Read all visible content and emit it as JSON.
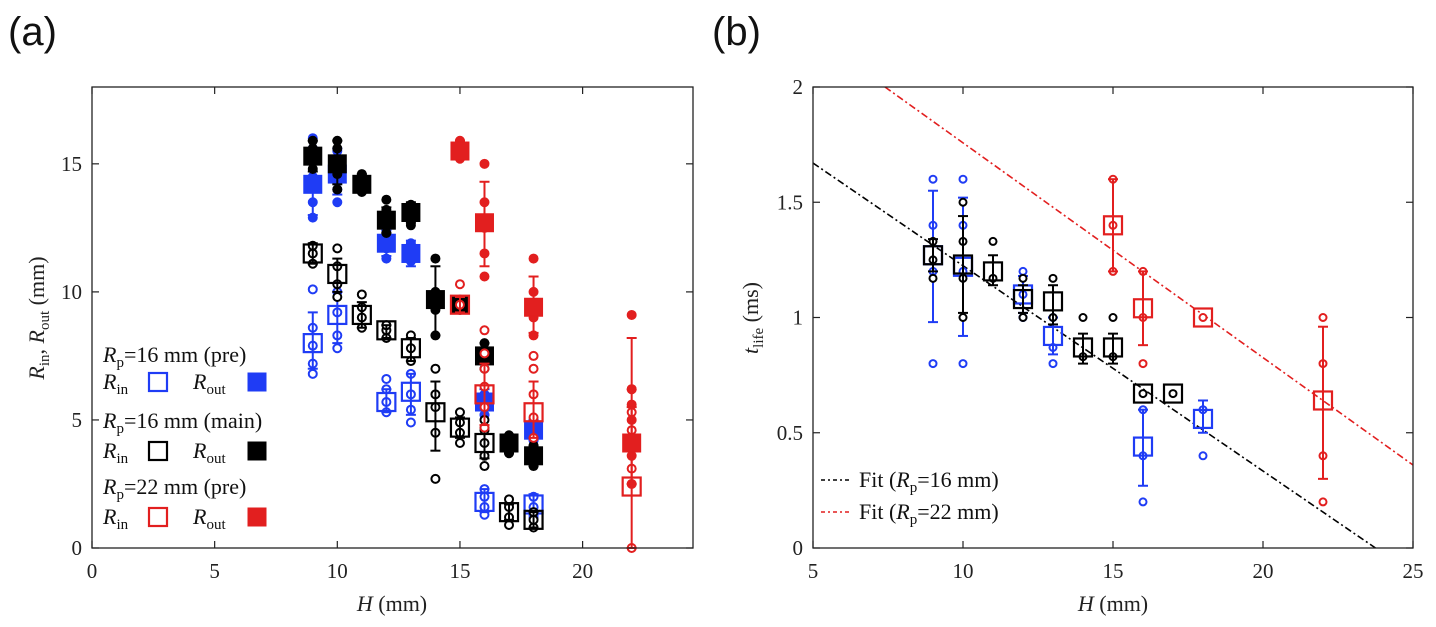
{
  "colors": {
    "blue": "#1f3cf5",
    "black": "#000000",
    "red": "#e21f1f"
  },
  "chart_data": [
    {
      "panel_label": "(a)",
      "type": "scatter",
      "xlabel_italic": "H",
      "xlabel_unit": " (mm)",
      "ylabel": {
        "r1": "R",
        "s1": "in",
        "sep": ",  ",
        "r2": "R",
        "s2": "out",
        "unit": " (mm)"
      },
      "xlim": [
        0,
        24.5
      ],
      "ylim": [
        0,
        18
      ],
      "xticks": [
        0,
        5,
        10,
        15,
        20
      ],
      "yticks": [
        0,
        5,
        10,
        15
      ],
      "legend": {
        "position": "left-center",
        "groups": [
          {
            "var": "R",
            "sub": "p",
            "eq": "=16 mm (pre)",
            "in_label_var": "R",
            "in_label_sub": "in",
            "out_label_var": "R",
            "out_label_sub": "out",
            "color": "blue"
          },
          {
            "var": "R",
            "sub": "p",
            "eq": "=16 mm (main)",
            "in_label_var": "R",
            "in_label_sub": "in",
            "out_label_var": "R",
            "out_label_sub": "out",
            "color": "black"
          },
          {
            "var": "R",
            "sub": "p",
            "eq": "=22 mm (pre)",
            "in_label_var": "R",
            "in_label_sub": "in",
            "out_label_var": "R",
            "out_label_sub": "out",
            "color": "red"
          }
        ]
      },
      "series": [
        {
          "name": "Rp=16 mm (pre) Rout",
          "color": "blue",
          "marker": "filled-square",
          "points": [
            {
              "x": 9,
              "y": 14.2,
              "lo": 13.0,
              "hi": 15.6,
              "raw": [
                12.9,
                13.5,
                14.1,
                14.5,
                15.2,
                15.6,
                16.0
              ]
            },
            {
              "x": 10,
              "y": 14.6,
              "lo": 13.8,
              "hi": 15.6,
              "raw": [
                13.5,
                14.0,
                14.5,
                15.0,
                15.5
              ]
            },
            {
              "x": 12,
              "y": 11.9,
              "lo": 11.4,
              "hi": 12.4,
              "raw": [
                11.3,
                11.7,
                12.0,
                12.4
              ]
            },
            {
              "x": 13,
              "y": 11.5,
              "lo": 11.0,
              "hi": 12.0,
              "raw": [
                11.2,
                11.5,
                11.9
              ]
            },
            {
              "x": 16,
              "y": 5.7,
              "lo": 5.2,
              "hi": 6.2,
              "raw": [
                5.2,
                5.6,
                6.0
              ]
            },
            {
              "x": 18,
              "y": 4.6,
              "lo": 4.2,
              "hi": 5.0,
              "raw": [
                4.2,
                4.6,
                5.0
              ]
            }
          ]
        },
        {
          "name": "Rp=16 mm (pre) Rin",
          "color": "blue",
          "marker": "open-square",
          "points": [
            {
              "x": 9,
              "y": 8.0,
              "lo": 7.0,
              "hi": 9.2,
              "raw": [
                6.8,
                7.2,
                7.9,
                8.6,
                10.1
              ]
            },
            {
              "x": 10,
              "y": 9.1,
              "lo": 8.0,
              "hi": 10.0,
              "raw": [
                7.8,
                8.3,
                9.2,
                10.0
              ]
            },
            {
              "x": 12,
              "y": 5.7,
              "lo": 5.3,
              "hi": 6.2,
              "raw": [
                5.3,
                5.7,
                6.2,
                6.6
              ]
            },
            {
              "x": 13,
              "y": 6.1,
              "lo": 5.2,
              "hi": 6.8,
              "raw": [
                4.9,
                5.4,
                6.0,
                6.8
              ]
            },
            {
              "x": 16,
              "y": 1.8,
              "lo": 1.4,
              "hi": 2.3,
              "raw": [
                1.3,
                1.6,
                2.0,
                2.3
              ]
            },
            {
              "x": 18,
              "y": 1.7,
              "lo": 1.3,
              "hi": 2.1,
              "raw": [
                1.2,
                1.6,
                2.0
              ]
            }
          ]
        },
        {
          "name": "Rp=16 mm (main) Rout",
          "color": "black",
          "marker": "filled-square",
          "points": [
            {
              "x": 9,
              "y": 15.3,
              "lo": 14.7,
              "hi": 15.9,
              "raw": [
                14.8,
                15.2,
                15.6,
                15.9
              ]
            },
            {
              "x": 10,
              "y": 15.0,
              "lo": 14.2,
              "hi": 15.9,
              "raw": [
                14.0,
                14.6,
                15.1,
                15.6,
                15.9
              ]
            },
            {
              "x": 11,
              "y": 14.2,
              "lo": 13.9,
              "hi": 14.6,
              "raw": [
                13.9,
                14.2,
                14.6
              ]
            },
            {
              "x": 12,
              "y": 12.8,
              "lo": 12.3,
              "hi": 13.3,
              "raw": [
                12.3,
                12.8,
                13.2,
                13.6
              ]
            },
            {
              "x": 13,
              "y": 13.1,
              "lo": 12.7,
              "hi": 13.5,
              "raw": [
                12.6,
                13.0,
                13.4
              ]
            },
            {
              "x": 14,
              "y": 9.7,
              "lo": 8.3,
              "hi": 11.0,
              "raw": [
                8.3,
                9.3,
                10.0,
                11.3
              ]
            },
            {
              "x": 15,
              "y": 9.5,
              "lo": 9.3,
              "hi": 9.7,
              "raw": [
                9.3,
                9.7
              ]
            },
            {
              "x": 16,
              "y": 7.5,
              "lo": 7.0,
              "hi": 8.0,
              "raw": [
                7.0,
                7.5,
                8.0
              ]
            },
            {
              "x": 17,
              "y": 4.1,
              "lo": 3.7,
              "hi": 4.4,
              "raw": [
                3.7,
                4.1,
                4.4
              ]
            },
            {
              "x": 18,
              "y": 3.6,
              "lo": 3.2,
              "hi": 4.0,
              "raw": [
                3.2,
                3.6,
                4.0
              ]
            }
          ]
        },
        {
          "name": "Rp=16 mm (main) Rin",
          "color": "black",
          "marker": "open-square",
          "points": [
            {
              "x": 9,
              "y": 11.5,
              "lo": 11.1,
              "hi": 11.9,
              "raw": [
                11.1,
                11.5,
                11.8
              ]
            },
            {
              "x": 10,
              "y": 10.7,
              "lo": 10.0,
              "hi": 11.3,
              "raw": [
                9.8,
                10.3,
                11.0,
                11.7
              ]
            },
            {
              "x": 11,
              "y": 9.1,
              "lo": 8.6,
              "hi": 9.6,
              "raw": [
                8.6,
                9.0,
                9.4,
                9.9
              ]
            },
            {
              "x": 12,
              "y": 8.5,
              "lo": 8.2,
              "hi": 8.7,
              "raw": [
                8.2,
                8.5,
                8.7
              ]
            },
            {
              "x": 13,
              "y": 7.8,
              "lo": 7.3,
              "hi": 8.2,
              "raw": [
                7.3,
                7.8,
                8.3
              ]
            },
            {
              "x": 14,
              "y": 5.3,
              "lo": 3.8,
              "hi": 6.5,
              "raw": [
                2.7,
                4.5,
                5.5,
                6.0,
                7.0
              ]
            },
            {
              "x": 15,
              "y": 4.7,
              "lo": 4.3,
              "hi": 5.1,
              "raw": [
                4.1,
                4.5,
                4.9,
                5.3
              ]
            },
            {
              "x": 16,
              "y": 4.1,
              "lo": 3.5,
              "hi": 4.7,
              "raw": [
                3.2,
                3.6,
                4.1,
                4.6,
                5.0
              ]
            },
            {
              "x": 17,
              "y": 1.4,
              "lo": 1.1,
              "hi": 1.7,
              "raw": [
                0.9,
                1.2,
                1.6,
                1.9
              ]
            },
            {
              "x": 18,
              "y": 1.1,
              "lo": 0.8,
              "hi": 1.4,
              "raw": [
                0.8,
                1.1,
                1.4
              ]
            }
          ]
        },
        {
          "name": "Rp=22 mm (pre) Rout",
          "color": "red",
          "marker": "filled-square",
          "points": [
            {
              "x": 15,
              "y": 15.5,
              "lo": 15.2,
              "hi": 15.9,
              "raw": [
                15.2,
                15.6,
                15.9
              ]
            },
            {
              "x": 16,
              "y": 12.7,
              "lo": 11.0,
              "hi": 14.3,
              "raw": [
                10.6,
                11.5,
                12.5,
                13.5,
                15.0
              ]
            },
            {
              "x": 18,
              "y": 9.4,
              "lo": 8.4,
              "hi": 10.6,
              "raw": [
                8.3,
                9.0,
                10.0,
                11.3
              ]
            },
            {
              "x": 22,
              "y": 4.1,
              "lo": 2.5,
              "hi": 5.5,
              "raw": [
                2.5,
                3.6,
                4.2,
                5.0,
                5.6,
                6.2,
                9.1
              ]
            }
          ]
        },
        {
          "name": "Rp=22 mm (pre) Rin",
          "color": "red",
          "marker": "open-square",
          "points": [
            {
              "x": 15,
              "y": 9.5,
              "lo": 9.2,
              "hi": 9.8,
              "raw": [
                9.5,
                10.3
              ]
            },
            {
              "x": 16,
              "y": 6.0,
              "lo": 4.8,
              "hi": 7.2,
              "raw": [
                4.7,
                5.5,
                6.3,
                7.0,
                7.6,
                8.5
              ]
            },
            {
              "x": 18,
              "y": 5.3,
              "lo": 4.3,
              "hi": 6.5,
              "raw": [
                4.3,
                5.1,
                6.0,
                7.0,
                7.5
              ]
            },
            {
              "x": 22,
              "y": 2.4,
              "lo": 0,
              "hi": 8.2,
              "raw": [
                0,
                3.1,
                4.0,
                4.6,
                5.3,
                6.2
              ]
            }
          ]
        }
      ]
    },
    {
      "panel_label": "(b)",
      "type": "scatter",
      "xlabel_italic": "H",
      "xlabel_unit": " (mm)",
      "ylabel": {
        "var": "t",
        "sub": "life",
        "unit": " (ms)"
      },
      "xlim": [
        5,
        25
      ],
      "ylim": [
        0,
        2
      ],
      "xticks": [
        5,
        10,
        15,
        20,
        25
      ],
      "yticks": [
        0,
        0.5,
        1,
        1.5,
        2
      ],
      "ytick_labels": [
        "0",
        "0.5",
        "1",
        "1.5",
        "2"
      ],
      "legend": {
        "position": "bottom-left",
        "entries": [
          {
            "pre": "Fit (",
            "var": "R",
            "sub": "p",
            "post": "=16 mm)",
            "color": "black"
          },
          {
            "pre": "Fit (",
            "var": "R",
            "sub": "p",
            "post": "=22 mm)",
            "color": "red"
          }
        ]
      },
      "fits": [
        {
          "name": "Fit (Rp=16 mm)",
          "color": "black",
          "x1": 5,
          "y1": 1.67,
          "x2": 23.75,
          "y2": 0
        },
        {
          "name": "Fit (Rp=22 mm)",
          "color": "red",
          "x1": 7.4,
          "y1": 2.0,
          "x2": 25,
          "y2": 0.36
        }
      ],
      "series": [
        {
          "name": "Rp=16 mm (pre)",
          "color": "blue",
          "points": [
            {
              "x": 9,
              "y": 1.27,
              "lo": 0.98,
              "hi": 1.55,
              "raw": [
                0.8,
                1.2,
                1.4,
                1.6
              ]
            },
            {
              "x": 10,
              "y": 1.22,
              "lo": 0.92,
              "hi": 1.52,
              "raw": [
                0.8,
                1.2,
                1.4,
                1.6
              ]
            },
            {
              "x": 12,
              "y": 1.1,
              "lo": 1.02,
              "hi": 1.18,
              "raw": [
                1.0,
                1.1,
                1.2
              ]
            },
            {
              "x": 13,
              "y": 0.92,
              "lo": 0.84,
              "hi": 1.0,
              "raw": [
                0.8,
                0.87,
                1.0
              ]
            },
            {
              "x": 16,
              "y": 0.44,
              "lo": 0.27,
              "hi": 0.6,
              "raw": [
                0.2,
                0.4,
                0.6
              ]
            },
            {
              "x": 18,
              "y": 0.56,
              "lo": 0.5,
              "hi": 0.64,
              "raw": [
                0.4,
                0.6
              ]
            }
          ]
        },
        {
          "name": "Rp=16 mm (main)",
          "color": "black",
          "points": [
            {
              "x": 9,
              "y": 1.27,
              "lo": 1.2,
              "hi": 1.34,
              "raw": [
                1.17,
                1.25,
                1.33
              ]
            },
            {
              "x": 10,
              "y": 1.23,
              "lo": 1.02,
              "hi": 1.44,
              "raw": [
                1.0,
                1.17,
                1.33,
                1.5
              ]
            },
            {
              "x": 11,
              "y": 1.2,
              "lo": 1.14,
              "hi": 1.27,
              "raw": [
                1.17,
                1.33
              ]
            },
            {
              "x": 12,
              "y": 1.08,
              "lo": 1.02,
              "hi": 1.14,
              "raw": [
                1.0,
                1.17
              ]
            },
            {
              "x": 13,
              "y": 1.07,
              "lo": 0.97,
              "hi": 1.14,
              "raw": [
                1.0,
                1.17
              ]
            },
            {
              "x": 14,
              "y": 0.87,
              "lo": 0.8,
              "hi": 0.93,
              "raw": [
                0.83,
                1.0
              ]
            },
            {
              "x": 15,
              "y": 0.87,
              "lo": 0.8,
              "hi": 0.93,
              "raw": [
                0.83,
                1.0
              ]
            },
            {
              "x": 16,
              "y": 0.67,
              "lo": 0.67,
              "hi": 0.67,
              "raw": [
                0.67
              ]
            },
            {
              "x": 17,
              "y": 0.67,
              "lo": 0.67,
              "hi": 0.67,
              "raw": [
                0.67
              ]
            }
          ]
        },
        {
          "name": "Rp=22 mm (pre)",
          "color": "red",
          "points": [
            {
              "x": 15,
              "y": 1.4,
              "lo": 1.2,
              "hi": 1.6,
              "raw": [
                1.2,
                1.4,
                1.6
              ]
            },
            {
              "x": 16,
              "y": 1.04,
              "lo": 0.88,
              "hi": 1.2,
              "raw": [
                0.8,
                1.0,
                1.2
              ]
            },
            {
              "x": 18,
              "y": 1.0,
              "lo": 1.0,
              "hi": 1.0,
              "raw": [
                1.0
              ]
            },
            {
              "x": 22,
              "y": 0.64,
              "lo": 0.3,
              "hi": 0.96,
              "raw": [
                0.2,
                0.4,
                0.8,
                1.0
              ]
            }
          ]
        }
      ]
    }
  ]
}
